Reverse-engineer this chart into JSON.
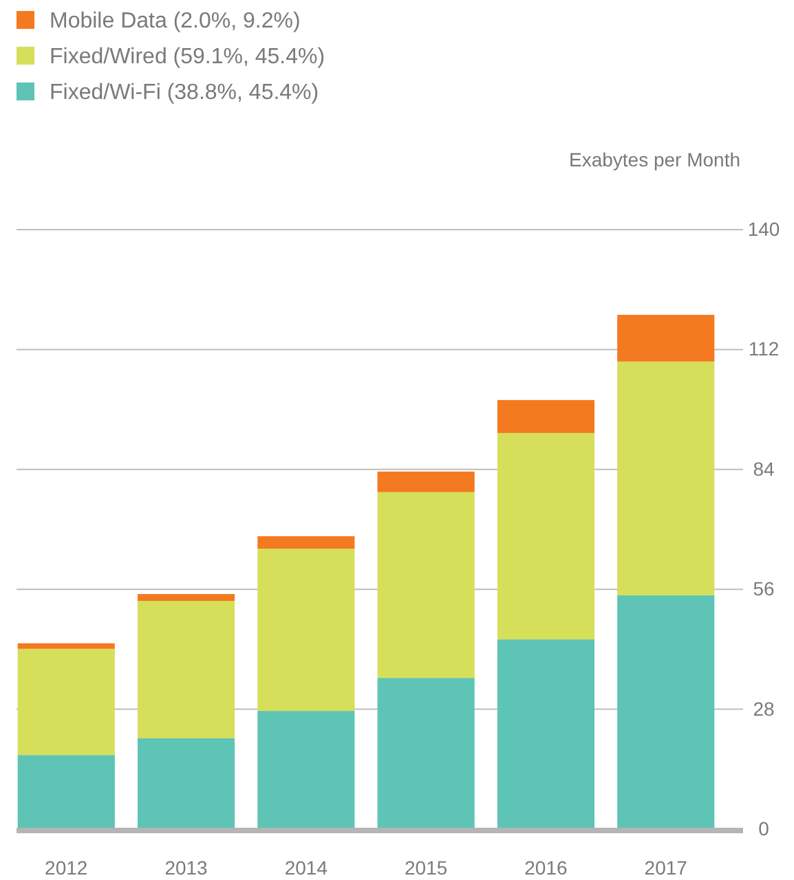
{
  "chart_data": {
    "type": "bar",
    "stacked": true,
    "ylabel": "Exabytes per Month",
    "categories": [
      "2012",
      "2013",
      "2014",
      "2015",
      "2016",
      "2017"
    ],
    "series": [
      {
        "name": "Fixed/Wi-Fi (38.8%, 45.4%)",
        "color": "#5ec4b6",
        "values": [
          17.3,
          21.2,
          27.6,
          35.3,
          44.3,
          54.6
        ]
      },
      {
        "name": "Fixed/Wired (59.1%, 45.4%)",
        "color": "#d5df5a",
        "values": [
          24.8,
          32.1,
          37.9,
          43.4,
          48.2,
          54.6
        ]
      },
      {
        "name": "Mobile Data (2.0%, 9.2%)",
        "color": "#f47a20",
        "values": [
          1.3,
          1.6,
          2.9,
          4.8,
          7.7,
          10.9
        ]
      }
    ],
    "ylim": [
      0,
      140
    ],
    "yticks": [
      0,
      28,
      56,
      84,
      112,
      140
    ],
    "grid": "y",
    "legend": "top left"
  }
}
